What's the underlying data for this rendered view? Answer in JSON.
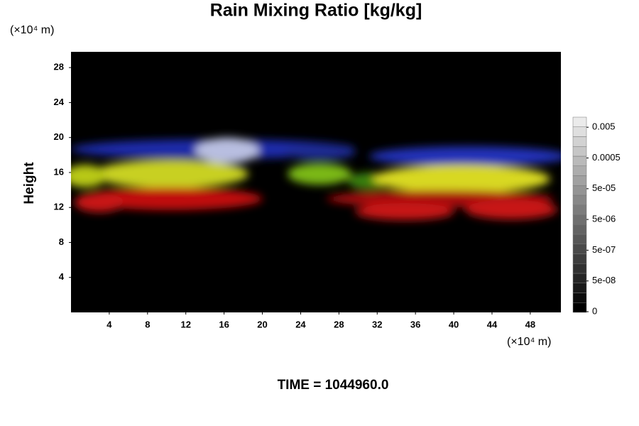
{
  "chart_data": {
    "type": "heatmap",
    "title": "Rain Mixing Ratio [kg/kg]",
    "x_unit": "(×10⁴ m)",
    "y_unit": "(×10⁴ m)",
    "y_label": "Height",
    "footer": "TIME = 1044960.0",
    "xlim": [
      0,
      51.2
    ],
    "xticks": [
      4,
      8,
      12,
      16,
      20,
      24,
      28,
      32,
      36,
      40,
      44,
      48
    ],
    "ylim": [
      0,
      29.8
    ],
    "yticks": [
      4,
      8,
      12,
      16,
      20,
      24,
      28
    ],
    "colorbar_ticks": [
      0,
      {
        "value": 5e-08,
        "label": "5e-08"
      },
      {
        "value": 5e-07,
        "label": "5e-07"
      },
      {
        "value": 5e-06,
        "label": "5e-06"
      },
      {
        "value": 5e-05,
        "label": "5e-05"
      },
      0.0005,
      0.005
    ]
  }
}
